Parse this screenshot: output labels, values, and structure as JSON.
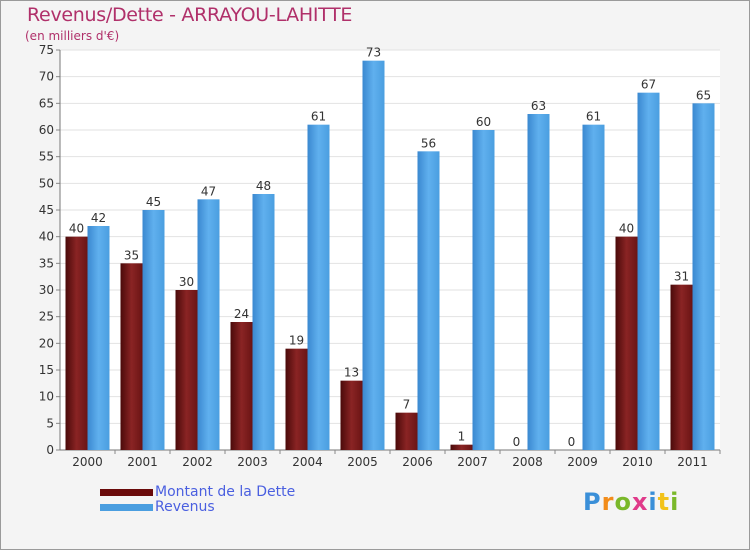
{
  "chart_data": {
    "type": "bar",
    "title": "Revenus/Dette - ARRAYOU-LAHITTE",
    "subtitle": "(en milliers d'€)",
    "categories": [
      "2000",
      "2001",
      "2002",
      "2003",
      "2004",
      "2005",
      "2006",
      "2007",
      "2008",
      "2009",
      "2010",
      "2011"
    ],
    "series": [
      {
        "name": "Montant de la Dette",
        "color": "#7a1a1a",
        "values": [
          40,
          35,
          30,
          24,
          19,
          13,
          7,
          1,
          0,
          0,
          40,
          31
        ]
      },
      {
        "name": "Revenus",
        "color": "#4a9ee0",
        "values": [
          42,
          45,
          47,
          48,
          61,
          73,
          56,
          60,
          63,
          61,
          67,
          65
        ]
      }
    ],
    "ylim": [
      0,
      75
    ],
    "yticks": [
      0,
      5,
      10,
      15,
      20,
      25,
      30,
      35,
      40,
      45,
      50,
      55,
      60,
      65,
      70,
      75
    ],
    "grid": true,
    "legend": "bottom-left"
  },
  "logo": {
    "letters": [
      "P",
      "r",
      "o",
      "x",
      "i",
      "t",
      "i"
    ],
    "colors": [
      "#3a8fd8",
      "#f28c1a",
      "#7ab82a",
      "#e03a8a",
      "#3a8fd8",
      "#f2c21a",
      "#7ab82a"
    ]
  }
}
